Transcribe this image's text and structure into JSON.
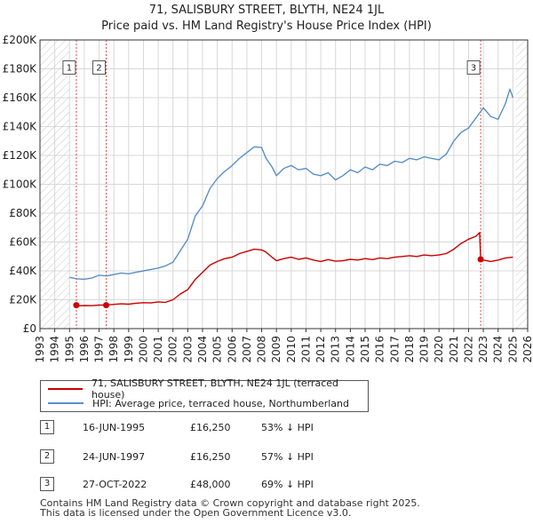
{
  "title": {
    "line1": "71, SALISBURY STREET, BLYTH, NE24 1JL",
    "line2": "Price paid vs. HM Land Registry's House Price Index (HPI)"
  },
  "colors": {
    "price_paid": "#cc0000",
    "hpi": "#5b8fc7",
    "hatch": "#cccccc",
    "grid": "#d8d8d8",
    "sale_marker_line": "#cc0000"
  },
  "chart_data": {
    "type": "line",
    "x_range": [
      1993,
      2026
    ],
    "ylim": [
      0,
      200000
    ],
    "y_ticks": [
      {
        "value": 0,
        "label": "£0"
      },
      {
        "value": 20000,
        "label": "£20K"
      },
      {
        "value": 40000,
        "label": "£40K"
      },
      {
        "value": 60000,
        "label": "£60K"
      },
      {
        "value": 80000,
        "label": "£80K"
      },
      {
        "value": 100000,
        "label": "£100K"
      },
      {
        "value": 120000,
        "label": "£120K"
      },
      {
        "value": 140000,
        "label": "£140K"
      },
      {
        "value": 160000,
        "label": "£160K"
      },
      {
        "value": 180000,
        "label": "£180K"
      },
      {
        "value": 200000,
        "label": "£200K"
      }
    ],
    "x_ticks": [
      "1993",
      "1994",
      "1995",
      "1996",
      "1997",
      "1998",
      "1999",
      "2000",
      "2001",
      "2002",
      "2003",
      "2004",
      "2005",
      "2006",
      "2007",
      "2008",
      "2009",
      "2010",
      "2011",
      "2012",
      "2013",
      "2014",
      "2015",
      "2016",
      "2017",
      "2018",
      "2019",
      "2020",
      "2021",
      "2022",
      "2023",
      "2024",
      "2025",
      "2026"
    ],
    "hatched_ranges": [
      [
        1993,
        1995.0
      ],
      [
        2025.2,
        2026
      ]
    ],
    "series": [
      {
        "name": "71, SALISBURY STREET, BLYTH, NE24 1JL (terraced house)",
        "color": "#cc0000",
        "points": [
          [
            1995.46,
            16250
          ],
          [
            1995.7,
            15800
          ],
          [
            1996.0,
            16000
          ],
          [
            1996.5,
            15900
          ],
          [
            1997.0,
            16300
          ],
          [
            1997.48,
            16250
          ],
          [
            1998.0,
            16800
          ],
          [
            1998.5,
            17200
          ],
          [
            1999.0,
            16900
          ],
          [
            1999.5,
            17600
          ],
          [
            2000.0,
            18000
          ],
          [
            2000.5,
            17800
          ],
          [
            2001.0,
            18500
          ],
          [
            2001.5,
            18200
          ],
          [
            2002.0,
            20000
          ],
          [
            2002.5,
            24000
          ],
          [
            2003.0,
            27000
          ],
          [
            2003.5,
            34000
          ],
          [
            2004.0,
            39000
          ],
          [
            2004.5,
            44000
          ],
          [
            2005.0,
            46500
          ],
          [
            2005.5,
            48500
          ],
          [
            2006.0,
            49500
          ],
          [
            2006.5,
            52000
          ],
          [
            2007.0,
            53500
          ],
          [
            2007.5,
            55000
          ],
          [
            2008.0,
            54500
          ],
          [
            2008.3,
            53000
          ],
          [
            2008.7,
            49500
          ],
          [
            2009.0,
            47000
          ],
          [
            2009.5,
            48500
          ],
          [
            2010.0,
            49500
          ],
          [
            2010.5,
            48000
          ],
          [
            2011.0,
            49000
          ],
          [
            2011.5,
            47500
          ],
          [
            2012.0,
            46500
          ],
          [
            2012.5,
            47800
          ],
          [
            2013.0,
            46700
          ],
          [
            2013.5,
            47000
          ],
          [
            2014.0,
            48000
          ],
          [
            2014.5,
            47500
          ],
          [
            2015.0,
            48500
          ],
          [
            2015.5,
            47800
          ],
          [
            2016.0,
            49000
          ],
          [
            2016.5,
            48500
          ],
          [
            2017.0,
            49500
          ],
          [
            2017.5,
            50000
          ],
          [
            2018.0,
            50500
          ],
          [
            2018.5,
            50000
          ],
          [
            2019.0,
            51000
          ],
          [
            2019.5,
            50500
          ],
          [
            2020.0,
            51000
          ],
          [
            2020.5,
            52000
          ],
          [
            2021.0,
            55000
          ],
          [
            2021.5,
            59000
          ],
          [
            2022.0,
            62000
          ],
          [
            2022.5,
            64000
          ],
          [
            2022.75,
            66500
          ],
          [
            2022.82,
            48000
          ],
          [
            2023.0,
            47500
          ],
          [
            2023.5,
            46500
          ],
          [
            2024.0,
            47500
          ],
          [
            2024.5,
            49000
          ],
          [
            2025.0,
            49500
          ]
        ]
      },
      {
        "name": "HPI: Average price, terraced house, Northumberland",
        "color": "#5b8fc7",
        "points": [
          [
            1995.0,
            35500
          ],
          [
            1995.5,
            34500
          ],
          [
            1996.0,
            34200
          ],
          [
            1996.5,
            35000
          ],
          [
            1997.0,
            37000
          ],
          [
            1997.5,
            36500
          ],
          [
            1998.0,
            37500
          ],
          [
            1998.5,
            38500
          ],
          [
            1999.0,
            38000
          ],
          [
            1999.5,
            39000
          ],
          [
            2000.0,
            40000
          ],
          [
            2000.5,
            41000
          ],
          [
            2001.0,
            42000
          ],
          [
            2001.5,
            43500
          ],
          [
            2002.0,
            46000
          ],
          [
            2002.5,
            54000
          ],
          [
            2003.0,
            62000
          ],
          [
            2003.5,
            78000
          ],
          [
            2004.0,
            85000
          ],
          [
            2004.5,
            97000
          ],
          [
            2005.0,
            104000
          ],
          [
            2005.5,
            109000
          ],
          [
            2006.0,
            113000
          ],
          [
            2006.5,
            118000
          ],
          [
            2007.0,
            122000
          ],
          [
            2007.5,
            126000
          ],
          [
            2008.0,
            125500
          ],
          [
            2008.3,
            118000
          ],
          [
            2008.7,
            112000
          ],
          [
            2009.0,
            106000
          ],
          [
            2009.5,
            111000
          ],
          [
            2010.0,
            113000
          ],
          [
            2010.5,
            110000
          ],
          [
            2011.0,
            111000
          ],
          [
            2011.5,
            107000
          ],
          [
            2012.0,
            106000
          ],
          [
            2012.5,
            108000
          ],
          [
            2013.0,
            103000
          ],
          [
            2013.5,
            106000
          ],
          [
            2014.0,
            110000
          ],
          [
            2014.5,
            108000
          ],
          [
            2015.0,
            112000
          ],
          [
            2015.5,
            110000
          ],
          [
            2016.0,
            114000
          ],
          [
            2016.5,
            113000
          ],
          [
            2017.0,
            116000
          ],
          [
            2017.5,
            115000
          ],
          [
            2018.0,
            118000
          ],
          [
            2018.5,
            117000
          ],
          [
            2019.0,
            119000
          ],
          [
            2019.5,
            118000
          ],
          [
            2020.0,
            117000
          ],
          [
            2020.5,
            121000
          ],
          [
            2021.0,
            130000
          ],
          [
            2021.5,
            136000
          ],
          [
            2022.0,
            139000
          ],
          [
            2022.5,
            146000
          ],
          [
            2023.0,
            153000
          ],
          [
            2023.5,
            147000
          ],
          [
            2024.0,
            145000
          ],
          [
            2024.5,
            156000
          ],
          [
            2024.8,
            166000
          ],
          [
            2025.0,
            160000
          ]
        ]
      }
    ],
    "sales": [
      {
        "num": "1",
        "x": 1995.46,
        "y": 16250
      },
      {
        "num": "2",
        "x": 1997.48,
        "y": 16250
      },
      {
        "num": "3",
        "x": 2022.82,
        "y": 48000
      }
    ]
  },
  "legend": {
    "items": [
      {
        "label": "71, SALISBURY STREET, BLYTH, NE24 1JL (terraced house)"
      },
      {
        "label": "HPI: Average price, terraced house, Northumberland"
      }
    ]
  },
  "sales_table": [
    {
      "num": "1",
      "date": "16-JUN-1995",
      "price": "£16,250",
      "hpi": "53% ↓ HPI"
    },
    {
      "num": "2",
      "date": "24-JUN-1997",
      "price": "£16,250",
      "hpi": "57% ↓ HPI"
    },
    {
      "num": "3",
      "date": "27-OCT-2022",
      "price": "£48,000",
      "hpi": "69% ↓ HPI"
    }
  ],
  "footer": {
    "line1": "Contains HM Land Registry data © Crown copyright and database right 2025.",
    "line2": "This data is licensed under the Open Government Licence v3.0."
  }
}
